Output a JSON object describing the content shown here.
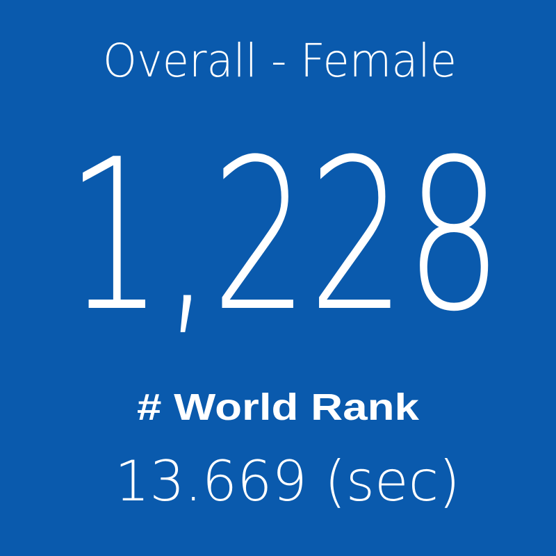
{
  "card": {
    "title": "Overall - Female",
    "value": "1,228",
    "label": "# World Rank",
    "detail": "13.669 (sec)"
  }
}
